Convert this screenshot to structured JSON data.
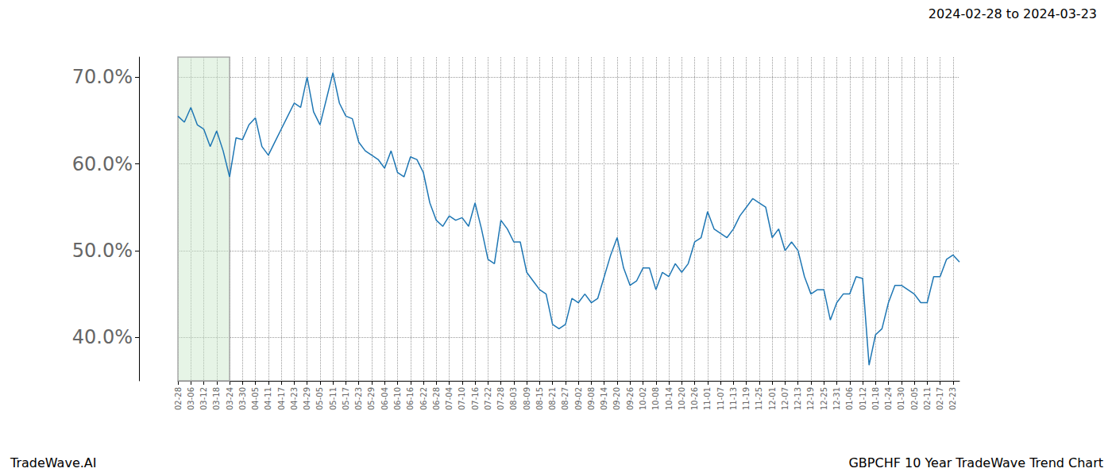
{
  "chart_data": {
    "type": "line",
    "title": "GBPCHF 10 Year TradeWave Trend Chart",
    "subtitle": "2024-02-28 to 2024-03-23",
    "annotations": [
      "TradeWave.AI"
    ],
    "shaded_range": [
      "02-28",
      "03-24"
    ],
    "categories": [
      "02-28",
      null,
      "03-06",
      null,
      "03-12",
      null,
      "03-18",
      null,
      "03-24",
      null,
      "03-30",
      null,
      "04-05",
      null,
      "04-11",
      null,
      "04-17",
      null,
      "04-23",
      null,
      "04-29",
      null,
      "05-05",
      null,
      "05-11",
      null,
      "05-17",
      null,
      "05-23",
      null,
      "05-29",
      null,
      "06-04",
      null,
      "06-10",
      null,
      "06-16",
      null,
      "06-22",
      null,
      "06-28",
      null,
      "07-04",
      null,
      "07-10",
      null,
      "07-16",
      null,
      "07-22",
      null,
      "07-28",
      null,
      "08-03",
      null,
      "08-09",
      null,
      "08-15",
      null,
      "08-21",
      null,
      "08-27",
      null,
      "09-02",
      null,
      "09-08",
      null,
      "09-14",
      null,
      "09-20",
      null,
      "09-26",
      null,
      "10-02",
      null,
      "10-08",
      null,
      "10-14",
      null,
      "10-20",
      null,
      "10-26",
      null,
      "11-01",
      null,
      "11-07",
      null,
      "11-13",
      null,
      "11-19",
      null,
      "11-25",
      null,
      "12-01",
      null,
      "12-07",
      null,
      "12-13",
      null,
      "12-19",
      null,
      "12-25",
      null,
      "12-31",
      null,
      "01-06",
      null,
      "01-12",
      null,
      "01-18",
      null,
      "01-24",
      null,
      "01-30",
      null,
      "02-05",
      null,
      "02-11",
      null,
      "02-17",
      null,
      "02-23",
      null
    ],
    "values": [
      65.5,
      64.8,
      66.5,
      64.5,
      64.0,
      62.0,
      63.8,
      61.5,
      58.5,
      63.0,
      62.8,
      64.5,
      65.3,
      62.0,
      61.0,
      62.5,
      64.0,
      65.5,
      67.0,
      66.5,
      70.0,
      66.0,
      64.5,
      67.5,
      70.5,
      67.0,
      65.5,
      65.2,
      62.5,
      61.5,
      61.0,
      60.5,
      59.5,
      61.5,
      59.0,
      58.5,
      60.8,
      60.5,
      59.0,
      55.5,
      53.5,
      52.8,
      54.0,
      53.5,
      53.8,
      52.8,
      55.5,
      52.5,
      49.0,
      48.5,
      53.5,
      52.5,
      51.0,
      51.0,
      47.5,
      46.5,
      45.5,
      45.0,
      41.5,
      41.0,
      41.5,
      44.5,
      44.0,
      45.0,
      44.0,
      44.5,
      47.0,
      49.5,
      51.5,
      48.0,
      46.0,
      46.5,
      48.0,
      48.0,
      45.5,
      47.5,
      47.0,
      48.5,
      47.5,
      48.5,
      51.0,
      51.5,
      54.5,
      52.5,
      52.0,
      51.5,
      52.5,
      54.0,
      55.0,
      56.0,
      55.5,
      55.0,
      51.5,
      52.5,
      50.0,
      51.0,
      50.0,
      47.0,
      45.0,
      45.5,
      45.5,
      42.0,
      44.0,
      45.0,
      45.0,
      47.0,
      46.8,
      36.8,
      40.3,
      41.0,
      44.0,
      46.0,
      46.0,
      45.5,
      45.0,
      44.0,
      44.0,
      47.0,
      47.0,
      49.0,
      49.5,
      48.7
    ],
    "color": "#1f77b4",
    "ylim": [
      35,
      72.3
    ],
    "yticks": [
      {
        "value": 40,
        "label": "40.0%"
      },
      {
        "value": 50,
        "label": "50.0%"
      },
      {
        "value": 60,
        "label": "60.0%"
      },
      {
        "value": 70,
        "label": "70.0%"
      }
    ],
    "grid": true
  }
}
